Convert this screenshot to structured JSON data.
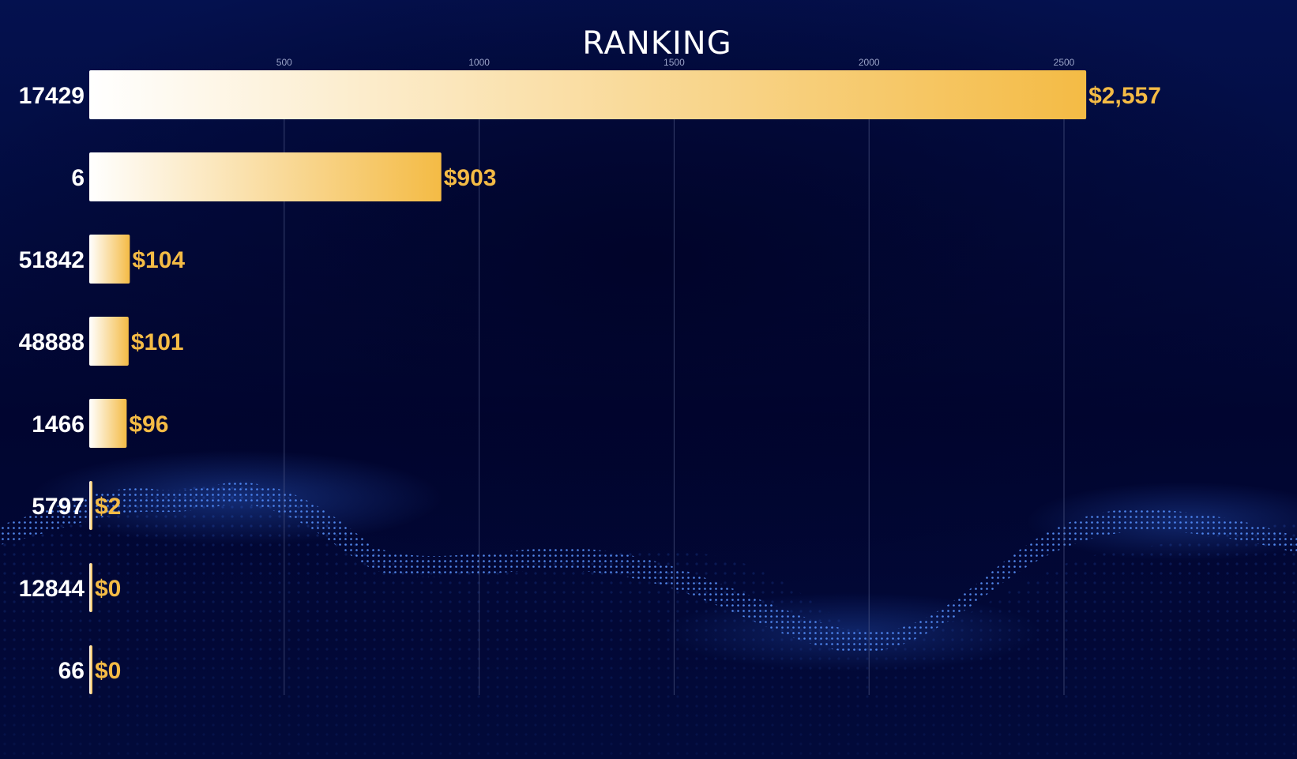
{
  "colors": {
    "bar_start": "#ffffff",
    "bar_end": "#f4bb45",
    "value_label": "#f4bb45",
    "category_label": "#ffffff",
    "gridline": "#5a6490",
    "tick_label": "#9aa3c8",
    "wave": "#3a7bff"
  },
  "chart_data": {
    "type": "bar",
    "orientation": "horizontal",
    "title": "RANKING",
    "categories": [
      "17429",
      "6",
      "51842",
      "48888",
      "1466",
      "5797",
      "12844",
      "66"
    ],
    "values": [
      2557,
      903,
      104,
      101,
      96,
      2,
      0,
      0
    ],
    "value_labels": [
      "$2,557",
      "$903",
      "$104",
      "$101",
      "$96",
      "$2",
      "$0",
      "$0"
    ],
    "xticks": [
      500,
      1000,
      1500,
      2000,
      2500
    ],
    "xtick_labels": [
      "500",
      "1000",
      "1500",
      "2000",
      "2500"
    ],
    "xlim": [
      0,
      2557
    ],
    "xlabel": "",
    "ylabel": "",
    "grid": true,
    "axis_position": "top"
  }
}
